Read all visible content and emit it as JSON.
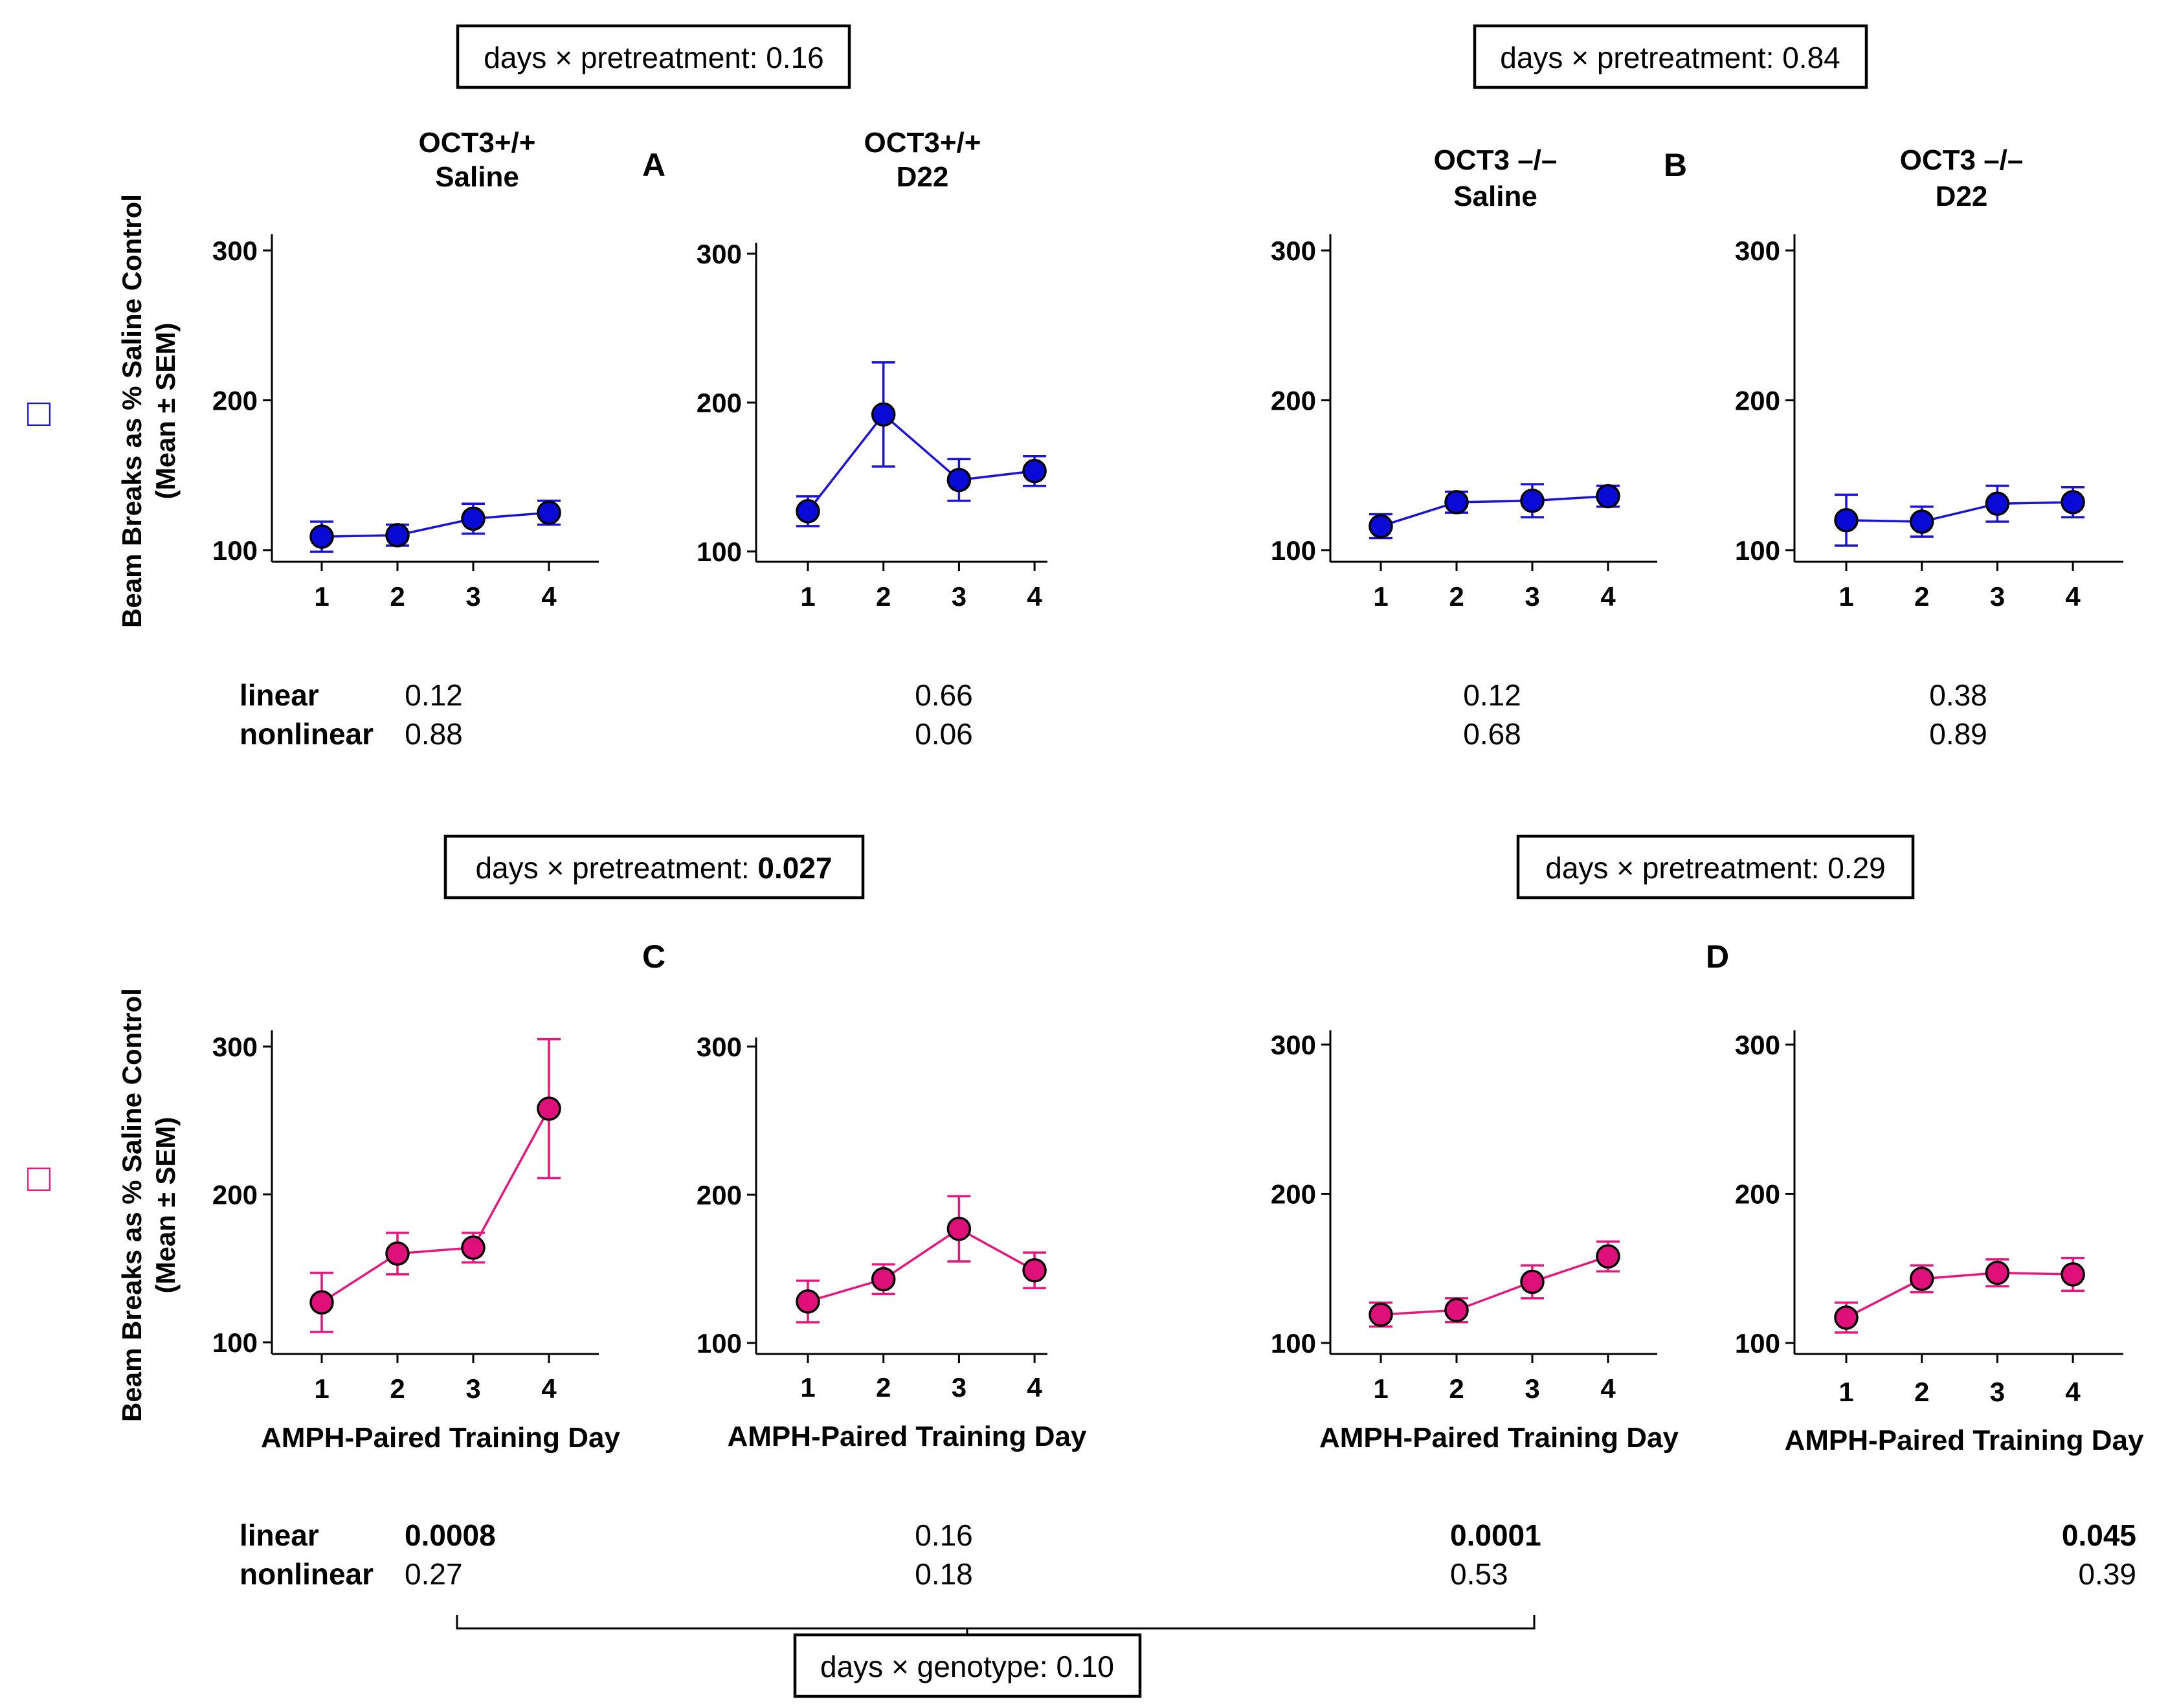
{
  "colors": {
    "saline_series": "#1a12d9",
    "saline_fill": "#0a0ad6",
    "amph_series": "#e8157c",
    "amph_fill": "#e0107a",
    "marker_edge": "#000000"
  },
  "legend_markers": [
    "□",
    "□"
  ],
  "interaction_boxes": {
    "A": {
      "label": "days × pretreatment: ",
      "value": "0.16",
      "value_bold": false
    },
    "B": {
      "label": "days × pretreatment: ",
      "value": "0.84",
      "value_bold": false
    },
    "C": {
      "label": "days × pretreatment: ",
      "value": "0.027",
      "value_bold": true
    },
    "D": {
      "label": "days × pretreatment: ",
      "value": "0.29",
      "value_bold": false
    },
    "genotype": {
      "label": "days × genotype: ",
      "value": "0.10",
      "value_bold": false
    }
  },
  "stats_labels": {
    "linear": "linear",
    "nonlinear": "nonlinear"
  },
  "chart_data": [
    {
      "id": "A1",
      "panel": "A",
      "type": "line",
      "title": [
        "OCT3+/+",
        "Saline"
      ],
      "ylabel": [
        "Beam Breaks as % Saline Control",
        "(Mean ± SEM)"
      ],
      "xlabel": "",
      "series": "saline",
      "x": [
        1,
        2,
        3,
        4
      ],
      "y": [
        109,
        110,
        121,
        125
      ],
      "err": [
        10,
        7,
        10,
        8
      ],
      "yticks": [
        100,
        200,
        300
      ],
      "ylim": [
        90,
        310
      ],
      "stats": {
        "linear": "0.12",
        "nonlinear": "0.88",
        "linear_bold": false
      }
    },
    {
      "id": "A2",
      "panel": "A",
      "type": "line",
      "title": [
        "OCT3+/+",
        "D22"
      ],
      "ylabel": [],
      "xlabel": "",
      "series": "saline",
      "x": [
        1,
        2,
        3,
        4
      ],
      "y": [
        127,
        192,
        148,
        154
      ],
      "err": [
        10,
        35,
        14,
        10
      ],
      "yticks": [
        100,
        200,
        300
      ],
      "ylim": [
        90,
        310
      ],
      "stats": {
        "linear": "0.66",
        "nonlinear": "0.06",
        "linear_bold": false
      }
    },
    {
      "id": "B1",
      "panel": "B",
      "type": "line",
      "title": [
        "OCT3 –/–",
        "Saline"
      ],
      "ylabel": [],
      "xlabel": "",
      "series": "saline",
      "x": [
        1,
        2,
        3,
        4
      ],
      "y": [
        116,
        132,
        133,
        136
      ],
      "err": [
        8,
        7,
        11,
        7
      ],
      "yticks": [
        100,
        200,
        300
      ],
      "ylim": [
        90,
        310
      ],
      "stats": {
        "linear": "0.12",
        "nonlinear": "0.68",
        "linear_bold": false
      }
    },
    {
      "id": "B2",
      "panel": "B",
      "type": "line",
      "title": [
        "OCT3 –/–",
        "D22"
      ],
      "ylabel": [],
      "xlabel": "",
      "series": "saline",
      "x": [
        1,
        2,
        3,
        4
      ],
      "y": [
        120,
        119,
        131,
        132
      ],
      "err": [
        17,
        10,
        12,
        10
      ],
      "yticks": [
        100,
        200,
        300
      ],
      "ylim": [
        90,
        310
      ],
      "stats": {
        "linear": "0.38",
        "nonlinear": "0.89",
        "linear_bold": false
      }
    },
    {
      "id": "C1",
      "panel": "C",
      "type": "line",
      "title": [],
      "ylabel": [
        "Beam Breaks as % Saline Control",
        "(Mean ± SEM)"
      ],
      "xlabel": "AMPH-Paired Training Day",
      "series": "amph",
      "x": [
        1,
        2,
        3,
        4
      ],
      "y": [
        127,
        160,
        164,
        258
      ],
      "err": [
        20,
        14,
        10,
        47
      ],
      "yticks": [
        100,
        200,
        300
      ],
      "ylim": [
        90,
        310
      ],
      "stats": {
        "linear": "0.0008",
        "nonlinear": "0.27",
        "linear_bold": true
      }
    },
    {
      "id": "C2",
      "panel": "C",
      "type": "line",
      "title": [],
      "ylabel": [],
      "xlabel": "AMPH-Paired Training Day",
      "series": "amph",
      "x": [
        1,
        2,
        3,
        4
      ],
      "y": [
        128,
        143,
        177,
        149
      ],
      "err": [
        14,
        10,
        22,
        12
      ],
      "yticks": [
        100,
        200,
        300
      ],
      "ylim": [
        90,
        310
      ],
      "stats": {
        "linear": "0.16",
        "nonlinear": "0.18",
        "linear_bold": false
      }
    },
    {
      "id": "D1",
      "panel": "D",
      "type": "line",
      "title": [],
      "ylabel": [],
      "xlabel": "AMPH-Paired Training Day",
      "series": "amph",
      "x": [
        1,
        2,
        3,
        4
      ],
      "y": [
        119,
        122,
        141,
        158
      ],
      "err": [
        8,
        8,
        11,
        10
      ],
      "yticks": [
        100,
        200,
        300
      ],
      "ylim": [
        90,
        310
      ],
      "stats": {
        "linear": "0.0001",
        "nonlinear": "0.53",
        "linear_bold": true
      }
    },
    {
      "id": "D2",
      "panel": "D",
      "type": "line",
      "title": [],
      "ylabel": [],
      "xlabel": "AMPH-Paired Training Day",
      "series": "amph",
      "x": [
        1,
        2,
        3,
        4
      ],
      "y": [
        117,
        143,
        147,
        146
      ],
      "err": [
        10,
        9,
        9,
        11
      ],
      "yticks": [
        100,
        200,
        300
      ],
      "ylim": [
        90,
        310
      ],
      "stats": {
        "linear": "0.045",
        "nonlinear": "0.39",
        "linear_bold": true
      }
    }
  ]
}
